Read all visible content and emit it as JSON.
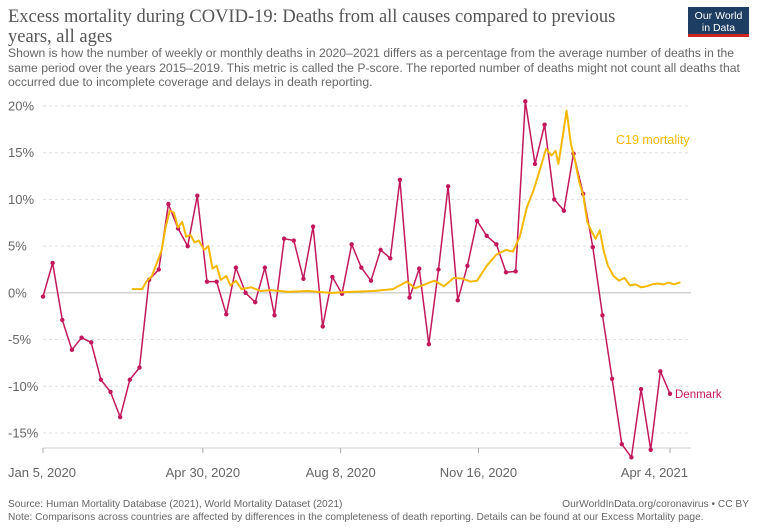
{
  "header": {
    "title": "Excess mortality during COVID-19: Deaths from all causes compared to previous years, all ages",
    "subtitle": "Shown is how the number of weekly or monthly deaths in 2020–2021 differs as a percentage from the average number of deaths in the same period over the years 2015–2019. This metric is called the P-score. The reported number of deaths might not count all deaths that occurred due to incomplete coverage and delays in death reporting.",
    "logo_line1": "Our World",
    "logo_line2": "in Data"
  },
  "footer": {
    "source": "Source: Human Mortality Database (2021), World Mortality Dataset (2021)",
    "url": "OurWorldInData.org/coronavirus • CC BY",
    "note": "Note: Comparisons across countries are affected by differences in the completeness of death reporting. Details can be found at our Excess Mortality page."
  },
  "chart_data": {
    "type": "line",
    "x_axis": {
      "type": "date",
      "range": [
        "2020-01-05",
        "2021-04-04"
      ],
      "tick_labels": [
        "Jan 5, 2020",
        "Apr 30, 2020",
        "Aug 8, 2020",
        "Nov 16, 2020",
        "Apr 4, 2021"
      ],
      "tick_dates": [
        "2020-01-05",
        "2020-04-30",
        "2020-08-08",
        "2020-11-16",
        "2021-04-04"
      ]
    },
    "y_axis": {
      "unit": "%",
      "range": [
        -17,
        21
      ],
      "tick_values": [
        20,
        15,
        10,
        5,
        0,
        -5,
        -10,
        -15
      ],
      "tick_labels": [
        "20%",
        "15%",
        "10%",
        "5%",
        "0%",
        "-5%",
        "-10%",
        "-15%"
      ],
      "grid": true
    },
    "series": [
      {
        "name": "Denmark",
        "color": "#c2185b",
        "label_position": "end",
        "points": [
          {
            "x": "2020-01-05",
            "y": -0.4
          },
          {
            "x": "2020-01-12",
            "y": 3.2
          },
          {
            "x": "2020-01-19",
            "y": -2.9
          },
          {
            "x": "2020-01-26",
            "y": -6.1
          },
          {
            "x": "2020-02-02",
            "y": -4.8
          },
          {
            "x": "2020-02-09",
            "y": -5.3
          },
          {
            "x": "2020-02-16",
            "y": -9.3
          },
          {
            "x": "2020-02-23",
            "y": -10.6
          },
          {
            "x": "2020-03-01",
            "y": -13.3
          },
          {
            "x": "2020-03-08",
            "y": -9.3
          },
          {
            "x": "2020-03-15",
            "y": -8.0
          },
          {
            "x": "2020-03-22",
            "y": 1.4
          },
          {
            "x": "2020-03-29",
            "y": 2.5
          },
          {
            "x": "2020-04-05",
            "y": 9.5
          },
          {
            "x": "2020-04-12",
            "y": 6.9
          },
          {
            "x": "2020-04-19",
            "y": 5.0
          },
          {
            "x": "2020-04-26",
            "y": 10.4
          },
          {
            "x": "2020-05-03",
            "y": 1.2
          },
          {
            "x": "2020-05-10",
            "y": 1.2
          },
          {
            "x": "2020-05-17",
            "y": -2.3
          },
          {
            "x": "2020-05-24",
            "y": 2.7
          },
          {
            "x": "2020-05-31",
            "y": 0.0
          },
          {
            "x": "2020-06-07",
            "y": -1.0
          },
          {
            "x": "2020-06-14",
            "y": 2.7
          },
          {
            "x": "2020-06-21",
            "y": -2.4
          },
          {
            "x": "2020-06-28",
            "y": 5.8
          },
          {
            "x": "2020-07-05",
            "y": 5.6
          },
          {
            "x": "2020-07-12",
            "y": 1.5
          },
          {
            "x": "2020-07-19",
            "y": 7.1
          },
          {
            "x": "2020-07-26",
            "y": -3.6
          },
          {
            "x": "2020-08-02",
            "y": 1.7
          },
          {
            "x": "2020-08-09",
            "y": -0.1
          },
          {
            "x": "2020-08-16",
            "y": 5.2
          },
          {
            "x": "2020-08-23",
            "y": 2.7
          },
          {
            "x": "2020-08-30",
            "y": 1.3
          },
          {
            "x": "2020-09-06",
            "y": 4.6
          },
          {
            "x": "2020-09-13",
            "y": 3.7
          },
          {
            "x": "2020-09-20",
            "y": 12.1
          },
          {
            "x": "2020-09-27",
            "y": -0.5
          },
          {
            "x": "2020-10-04",
            "y": 2.6
          },
          {
            "x": "2020-10-11",
            "y": -5.5
          },
          {
            "x": "2020-10-18",
            "y": 2.5
          },
          {
            "x": "2020-10-25",
            "y": 11.4
          },
          {
            "x": "2020-11-01",
            "y": -0.8
          },
          {
            "x": "2020-11-08",
            "y": 2.9
          },
          {
            "x": "2020-11-15",
            "y": 7.7
          },
          {
            "x": "2020-11-22",
            "y": 6.1
          },
          {
            "x": "2020-11-29",
            "y": 5.2
          },
          {
            "x": "2020-12-06",
            "y": 2.2
          },
          {
            "x": "2020-12-13",
            "y": 2.3
          },
          {
            "x": "2020-12-20",
            "y": 20.5
          },
          {
            "x": "2020-12-27",
            "y": 13.8
          },
          {
            "x": "2021-01-03",
            "y": 18.0
          },
          {
            "x": "2021-01-10",
            "y": 10.0
          },
          {
            "x": "2021-01-17",
            "y": 8.8
          },
          {
            "x": "2021-01-24",
            "y": 14.9
          },
          {
            "x": "2021-01-31",
            "y": 10.6
          },
          {
            "x": "2021-02-07",
            "y": 4.9
          },
          {
            "x": "2021-02-14",
            "y": -2.4
          },
          {
            "x": "2021-02-21",
            "y": -9.2
          },
          {
            "x": "2021-02-28",
            "y": -16.2
          },
          {
            "x": "2021-03-07",
            "y": -17.6
          },
          {
            "x": "2021-03-14",
            "y": -10.3
          },
          {
            "x": "2021-03-21",
            "y": -16.8
          },
          {
            "x": "2021-03-28",
            "y": -8.4
          },
          {
            "x": "2021-04-04",
            "y": -10.8
          }
        ]
      },
      {
        "name": "C19 mortality",
        "color": "#f5b800",
        "label_position": "inline",
        "label_at": "2021-01-27",
        "points": [
          {
            "x": "2020-03-10",
            "y": 0.4
          },
          {
            "x": "2020-03-17",
            "y": 0.4
          },
          {
            "x": "2020-03-20",
            "y": 1.2
          },
          {
            "x": "2020-03-24",
            "y": 1.8
          },
          {
            "x": "2020-03-31",
            "y": 4.5
          },
          {
            "x": "2020-04-03",
            "y": 7.0
          },
          {
            "x": "2020-04-06",
            "y": 8.8
          },
          {
            "x": "2020-04-09",
            "y": 8.6
          },
          {
            "x": "2020-04-12",
            "y": 7.0
          },
          {
            "x": "2020-04-15",
            "y": 7.6
          },
          {
            "x": "2020-04-18",
            "y": 6.0
          },
          {
            "x": "2020-04-21",
            "y": 6.2
          },
          {
            "x": "2020-04-24",
            "y": 5.4
          },
          {
            "x": "2020-04-27",
            "y": 5.6
          },
          {
            "x": "2020-05-01",
            "y": 4.6
          },
          {
            "x": "2020-05-04",
            "y": 5.0
          },
          {
            "x": "2020-05-07",
            "y": 2.6
          },
          {
            "x": "2020-05-10",
            "y": 2.9
          },
          {
            "x": "2020-05-13",
            "y": 1.4
          },
          {
            "x": "2020-05-17",
            "y": 1.8
          },
          {
            "x": "2020-05-20",
            "y": 0.8
          },
          {
            "x": "2020-05-24",
            "y": 1.3
          },
          {
            "x": "2020-05-28",
            "y": 0.4
          },
          {
            "x": "2020-06-04",
            "y": 0.6
          },
          {
            "x": "2020-06-11",
            "y": 0.2
          },
          {
            "x": "2020-06-18",
            "y": 0.3
          },
          {
            "x": "2020-07-01",
            "y": 0.1
          },
          {
            "x": "2020-07-15",
            "y": 0.2
          },
          {
            "x": "2020-08-01",
            "y": 0.0
          },
          {
            "x": "2020-08-15",
            "y": 0.1
          },
          {
            "x": "2020-09-01",
            "y": 0.2
          },
          {
            "x": "2020-09-15",
            "y": 0.4
          },
          {
            "x": "2020-09-25",
            "y": 1.2
          },
          {
            "x": "2020-10-01",
            "y": 0.5
          },
          {
            "x": "2020-10-08",
            "y": 0.9
          },
          {
            "x": "2020-10-15",
            "y": 1.3
          },
          {
            "x": "2020-10-22",
            "y": 0.7
          },
          {
            "x": "2020-10-29",
            "y": 1.6
          },
          {
            "x": "2020-11-05",
            "y": 1.5
          },
          {
            "x": "2020-11-10",
            "y": 1.2
          },
          {
            "x": "2020-11-15",
            "y": 1.3
          },
          {
            "x": "2020-11-22",
            "y": 2.9
          },
          {
            "x": "2020-11-29",
            "y": 4.1
          },
          {
            "x": "2020-12-06",
            "y": 4.6
          },
          {
            "x": "2020-12-11",
            "y": 4.4
          },
          {
            "x": "2020-12-16",
            "y": 6.0
          },
          {
            "x": "2020-12-21",
            "y": 9.1
          },
          {
            "x": "2020-12-26",
            "y": 11.0
          },
          {
            "x": "2020-12-31",
            "y": 13.4
          },
          {
            "x": "2021-01-04",
            "y": 15.4
          },
          {
            "x": "2021-01-08",
            "y": 14.7
          },
          {
            "x": "2021-01-11",
            "y": 15.2
          },
          {
            "x": "2021-01-13",
            "y": 13.8
          },
          {
            "x": "2021-01-16",
            "y": 16.6
          },
          {
            "x": "2021-01-19",
            "y": 19.5
          },
          {
            "x": "2021-01-22",
            "y": 16.0
          },
          {
            "x": "2021-01-25",
            "y": 14.2
          },
          {
            "x": "2021-01-28",
            "y": 11.9
          },
          {
            "x": "2021-01-31",
            "y": 10.5
          },
          {
            "x": "2021-02-03",
            "y": 7.6
          },
          {
            "x": "2021-02-06",
            "y": 6.6
          },
          {
            "x": "2021-02-09",
            "y": 5.8
          },
          {
            "x": "2021-02-12",
            "y": 6.7
          },
          {
            "x": "2021-02-15",
            "y": 4.4
          },
          {
            "x": "2021-02-18",
            "y": 2.9
          },
          {
            "x": "2021-02-22",
            "y": 1.8
          },
          {
            "x": "2021-02-26",
            "y": 1.3
          },
          {
            "x": "2021-03-02",
            "y": 1.6
          },
          {
            "x": "2021-03-06",
            "y": 0.8
          },
          {
            "x": "2021-03-10",
            "y": 0.9
          },
          {
            "x": "2021-03-14",
            "y": 0.6
          },
          {
            "x": "2021-03-18",
            "y": 0.7
          },
          {
            "x": "2021-03-22",
            "y": 0.9
          },
          {
            "x": "2021-03-26",
            "y": 1.0
          },
          {
            "x": "2021-03-30",
            "y": 0.9
          },
          {
            "x": "2021-04-03",
            "y": 1.1
          },
          {
            "x": "2021-04-07",
            "y": 0.9
          },
          {
            "x": "2021-04-11",
            "y": 1.1
          }
        ]
      }
    ]
  }
}
